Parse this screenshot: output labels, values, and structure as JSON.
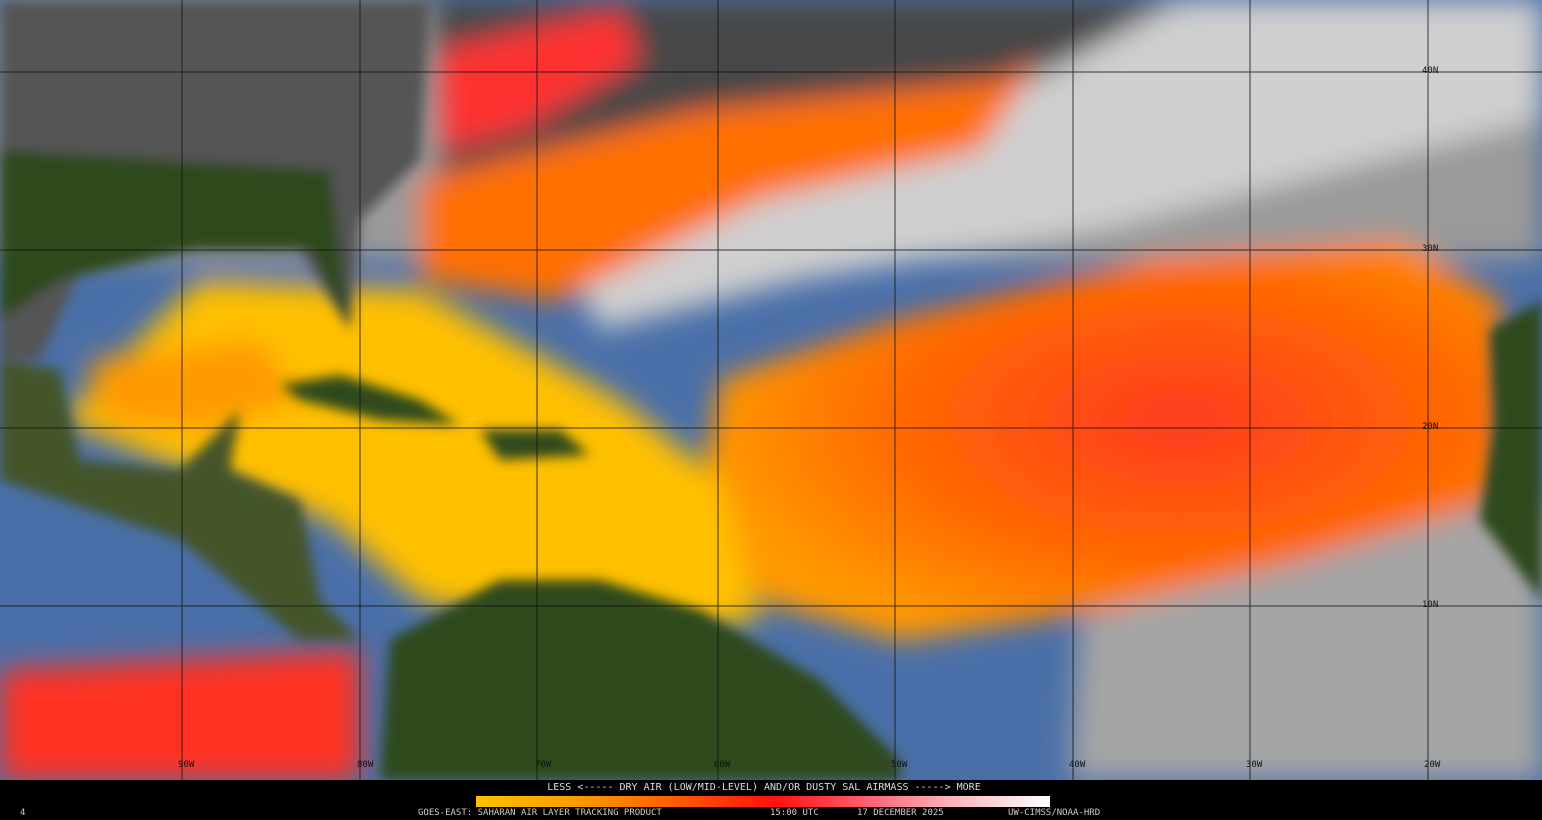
{
  "product": {
    "satellite": "GOES-EAST",
    "title": "SAHARAN AIR LAYER TRACKING PRODUCT",
    "time": "15:00 UTC",
    "date": "17 DECEMBER 2025",
    "credit": "UW-CIMSS/NOAA-HRD",
    "frame_marker": "4"
  },
  "legend": {
    "title": "LESS <----- DRY AIR (LOW/MID-LEVEL) AND/OR DUSTY SAL AIRMASS -----> MORE",
    "low_label": "LESS",
    "high_label": "MORE",
    "colors": [
      "#ffc000",
      "#ff9a00",
      "#ff5a00",
      "#ff1010",
      "#ff6070",
      "#ffb0b8",
      "#ffffff"
    ]
  },
  "map": {
    "longitude_labels": [
      "90W",
      "80W",
      "70W",
      "60W",
      "50W",
      "40W",
      "30W",
      "20W"
    ],
    "latitude_labels": [
      "40N",
      "30N",
      "20N",
      "10N"
    ],
    "colors": {
      "land": "#2f4a1c",
      "ocean": "#4a6fa8",
      "cloud": "#b8b8b8",
      "upper_dry": "#4a4a4a"
    }
  }
}
